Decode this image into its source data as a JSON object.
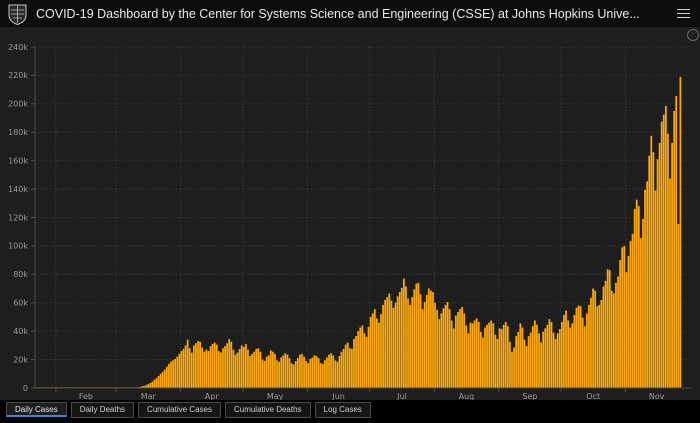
{
  "header": {
    "title": "COVID-19 Dashboard by the Center for Systems Science and Engineering (CSSE) at Johns Hopkins Unive...",
    "logo_name": "johns-hopkins-shield-logo",
    "menu_icon": "hamburger-menu-icon"
  },
  "chart_menu_glyph": "◦",
  "tabs": [
    {
      "label": "Daily Cases",
      "active": true
    },
    {
      "label": "Daily Deaths",
      "active": false
    },
    {
      "label": "Cumulative Cases",
      "active": false
    },
    {
      "label": "Cumulative Deaths",
      "active": false
    },
    {
      "label": "Log Cases",
      "active": false
    }
  ],
  "colors": {
    "bar": "#ffa90a",
    "chart_bg": "#1e1e1e",
    "header_bg": "#0d0d0d",
    "grid": "#3a3a3a",
    "axis": "#4b4b4b",
    "tick_text": "#9a9a9a",
    "active_tab_underline": "#4286d6"
  },
  "chart_data": {
    "type": "bar",
    "title": "",
    "xlabel": "",
    "ylabel": "",
    "legend": null,
    "grid": "dotted",
    "ylim": [
      0,
      240000
    ],
    "bar_color": "#ffa90a",
    "axis_total_days": 316,
    "y_ticks": [
      {
        "value": 0,
        "label": "0"
      },
      {
        "value": 20000,
        "label": "20k"
      },
      {
        "value": 40000,
        "label": "40k"
      },
      {
        "value": 60000,
        "label": "60k"
      },
      {
        "value": 80000,
        "label": "80k"
      },
      {
        "value": 100000,
        "label": "100k"
      },
      {
        "value": 120000,
        "label": "120k"
      },
      {
        "value": 140000,
        "label": "140k"
      },
      {
        "value": 160000,
        "label": "160k"
      },
      {
        "value": 180000,
        "label": "180k"
      },
      {
        "value": 200000,
        "label": "200k"
      },
      {
        "value": 220000,
        "label": "220k"
      },
      {
        "value": 240000,
        "label": "240k"
      }
    ],
    "months": [
      {
        "label": "Feb",
        "start_day": 10,
        "mid_day": 24.5
      },
      {
        "label": "Mar",
        "start_day": 39,
        "mid_day": 54.5
      },
      {
        "label": "Apr",
        "start_day": 70,
        "mid_day": 85
      },
      {
        "label": "May",
        "start_day": 100,
        "mid_day": 115.5
      },
      {
        "label": "Jun",
        "start_day": 131,
        "mid_day": 146
      },
      {
        "label": "Jul",
        "start_day": 161,
        "mid_day": 176.5
      },
      {
        "label": "Aug",
        "start_day": 192,
        "mid_day": 207.5
      },
      {
        "label": "Sep",
        "start_day": 223,
        "mid_day": 238
      },
      {
        "label": "Oct",
        "start_day": 253,
        "mid_day": 268.5
      },
      {
        "label": "Nov",
        "start_day": 284,
        "mid_day": 299
      }
    ],
    "values": [
      1,
      0,
      1,
      0,
      2,
      1,
      1,
      2,
      1,
      2,
      2,
      1,
      2,
      2,
      3,
      2,
      2,
      3,
      2,
      3,
      3,
      2,
      3,
      4,
      3,
      4,
      5,
      4,
      6,
      5,
      7,
      8,
      10,
      12,
      14,
      16,
      18,
      22,
      25,
      30,
      40,
      55,
      70,
      90,
      120,
      160,
      220,
      300,
      420,
      580,
      800,
      1100,
      1500,
      2000,
      2700,
      3500,
      4500,
      5800,
      7000,
      8500,
      10000,
      11500,
      13000,
      15000,
      17000,
      18500,
      19500,
      20500,
      22000,
      24000,
      26000,
      27500,
      30000,
      34000,
      28000,
      25000,
      30000,
      31500,
      33000,
      32500,
      28500,
      25500,
      27000,
      26000,
      29500,
      31000,
      32000,
      30500,
      26000,
      25000,
      28000,
      29500,
      31500,
      34500,
      32500,
      27000,
      23500,
      25000,
      27500,
      30000,
      29000,
      31000,
      27000,
      22500,
      24000,
      25500,
      27500,
      28000,
      25500,
      20000,
      19000,
      22000,
      23000,
      26500,
      25500,
      24000,
      19500,
      18500,
      21500,
      23000,
      24500,
      23500,
      21000,
      17500,
      16500,
      19000,
      21000,
      23500,
      24000,
      22000,
      19000,
      17500,
      20500,
      21500,
      23000,
      22500,
      21000,
      17500,
      17000,
      19500,
      21500,
      23500,
      24500,
      23000,
      19500,
      18500,
      22500,
      25500,
      27500,
      30500,
      32000,
      28000,
      27500,
      34500,
      36500,
      40000,
      42500,
      44000,
      38500,
      36000,
      43000,
      50000,
      52500,
      55500,
      49000,
      46000,
      52000,
      58500,
      62000,
      64000,
      66500,
      61500,
      56500,
      60000,
      64500,
      67500,
      70500,
      77000,
      71500,
      63000,
      58500,
      64000,
      69500,
      73500,
      74000,
      66000,
      55500,
      60500,
      65500,
      70000,
      68500,
      67500,
      60000,
      55000,
      48500,
      52500,
      56000,
      58500,
      60500,
      55500,
      47500,
      42000,
      51000,
      53500,
      55500,
      57000,
      52500,
      44000,
      38500,
      46000,
      45500,
      47500,
      49000,
      46500,
      39500,
      35500,
      42500,
      44500,
      46000,
      47500,
      45500,
      37500,
      34500,
      42000,
      41500,
      44500,
      46500,
      43500,
      32500,
      25500,
      28500,
      36500,
      39500,
      45500,
      42500,
      34000,
      29500,
      36500,
      39000,
      43500,
      47500,
      44500,
      38500,
      32000,
      39500,
      42000,
      44500,
      48500,
      46500,
      39000,
      34500,
      38500,
      41500,
      46500,
      51500,
      54500,
      47500,
      42500,
      45500,
      51500,
      56500,
      58000,
      57500,
      49500,
      43500,
      52500,
      58500,
      63500,
      70000,
      68500,
      57500,
      58500,
      62000,
      71500,
      75500,
      83500,
      83000,
      68500,
      66500,
      74000,
      78500,
      90000,
      99000,
      100000,
      81500,
      93000,
      103500,
      108500,
      126000,
      132500,
      128000,
      105500,
      119000,
      139500,
      145500,
      163500,
      177500,
      166000,
      139000,
      161000,
      172500,
      187500,
      192500,
      198500,
      179000,
      147500,
      172500,
      195000,
      205500,
      115500,
      219000
    ]
  }
}
